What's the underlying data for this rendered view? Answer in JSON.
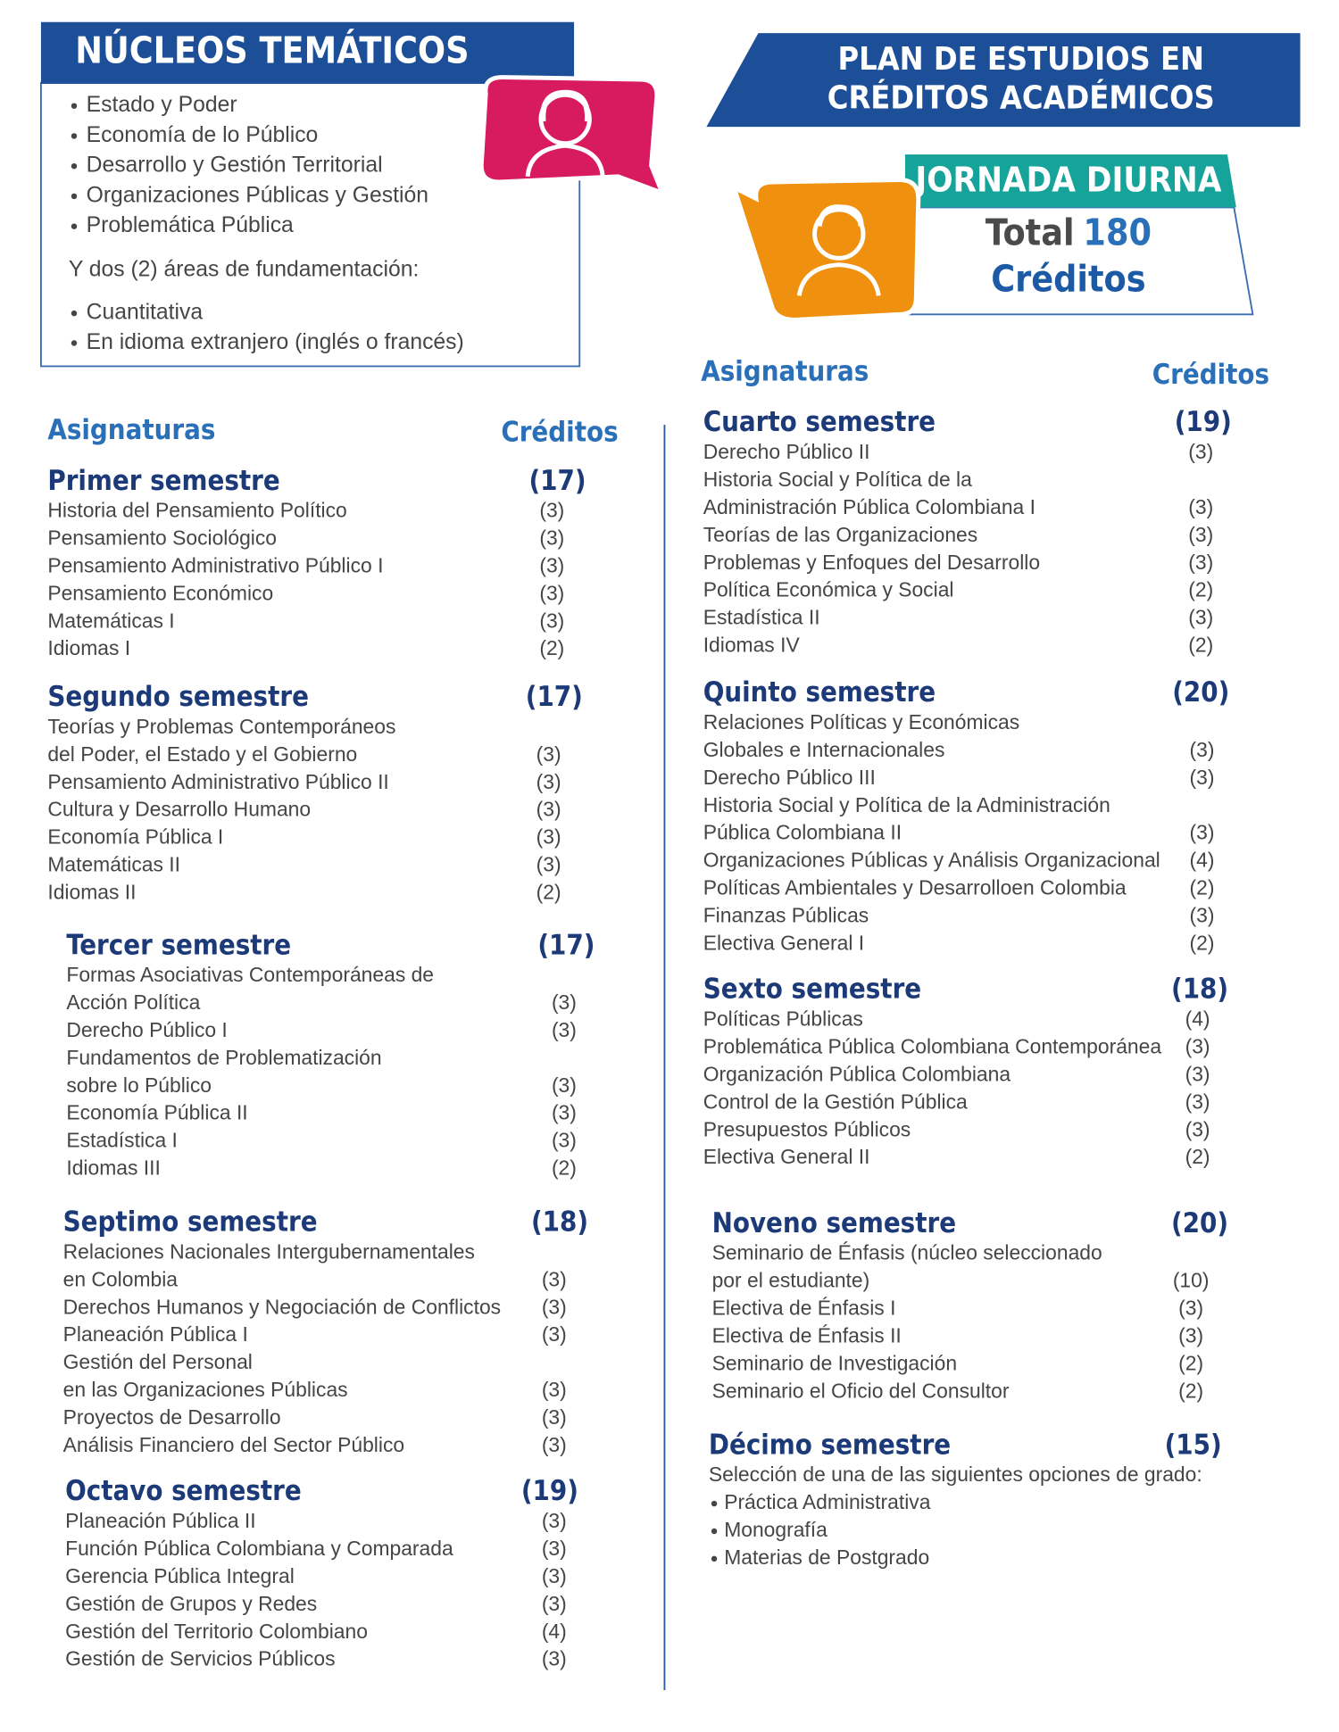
{
  "nucleos": {
    "title": "NÚCLEOS TEMÁTICOS",
    "items": [
      "Estado y Poder",
      "Economía de lo Público",
      "Desarrollo y Gestión Territorial",
      "Organizaciones Públicas y Gestión",
      "Problemática Pública"
    ],
    "note": "Y dos (2) áreas de fundamentación:",
    "areas": [
      "Cuantitativa",
      "En idioma extranjero (inglés o francés)"
    ]
  },
  "plan": {
    "title_lines": [
      "PLAN DE ESTUDIOS EN",
      "CRÉDITOS ACADÉMICOS"
    ],
    "jornada": "JORNADA DIURNA",
    "total_label": "Total",
    "total_value": "180",
    "total_unit": "Créditos"
  },
  "left_header": {
    "asignaturas": "Asignaturas",
    "creditos": "Créditos"
  },
  "right_header": {
    "asignaturas": "Asignaturas",
    "creditos": "Créditos"
  },
  "semesters": [
    {
      "title": "Primer semestre",
      "credits": "(17)",
      "items": [
        {
          "lines": [
            "Historia del Pensamiento Político"
          ],
          "credits": "(3)"
        },
        {
          "lines": [
            "Pensamiento Sociológico"
          ],
          "credits": "(3)"
        },
        {
          "lines": [
            "Pensamiento Administrativo Público I"
          ],
          "credits": "(3)"
        },
        {
          "lines": [
            "Pensamiento Económico"
          ],
          "credits": "(3)"
        },
        {
          "lines": [
            "Matemáticas I"
          ],
          "credits": "(3)"
        },
        {
          "lines": [
            "Idiomas I"
          ],
          "credits": "(2)"
        }
      ]
    },
    {
      "title": "Segundo semestre",
      "credits": "(17)",
      "items": [
        {
          "lines": [
            "Teorías y Problemas Contemporáneos",
            "del Poder, el Estado y el Gobierno"
          ],
          "credits": "(3)"
        },
        {
          "lines": [
            "Pensamiento Administrativo Público II"
          ],
          "credits": "(3)"
        },
        {
          "lines": [
            "Cultura y Desarrollo Humano"
          ],
          "credits": "(3)"
        },
        {
          "lines": [
            "Economía Pública I"
          ],
          "credits": "(3)"
        },
        {
          "lines": [
            "Matemáticas II"
          ],
          "credits": "(3)"
        },
        {
          "lines": [
            "Idiomas II"
          ],
          "credits": "(2)"
        }
      ]
    },
    {
      "title": "Tercer semestre",
      "credits": "(17)",
      "items": [
        {
          "lines": [
            "Formas Asociativas Contemporáneas de",
            "Acción Política"
          ],
          "credits": "(3)"
        },
        {
          "lines": [
            "Derecho Público I"
          ],
          "credits": "(3)"
        },
        {
          "lines": [
            "Fundamentos de Problematización",
            "sobre lo Público"
          ],
          "credits": "(3)"
        },
        {
          "lines": [
            "Economía Pública II"
          ],
          "credits": "(3)"
        },
        {
          "lines": [
            "Estadística I"
          ],
          "credits": "(3)"
        },
        {
          "lines": [
            "Idiomas III"
          ],
          "credits": "(2)"
        }
      ]
    },
    {
      "title": "Cuarto semestre",
      "credits": "(19)",
      "items": [
        {
          "lines": [
            "Derecho Público II"
          ],
          "credits": "(3)"
        },
        {
          "lines": [
            "Historia Social y Política de la",
            "Administración Pública Colombiana I"
          ],
          "credits": "(3)"
        },
        {
          "lines": [
            "Teorías de las Organizaciones"
          ],
          "credits": "(3)"
        },
        {
          "lines": [
            "Problemas y Enfoques del Desarrollo"
          ],
          "credits": "(3)"
        },
        {
          "lines": [
            "Política Económica y Social"
          ],
          "credits": "(2)"
        },
        {
          "lines": [
            "Estadística II"
          ],
          "credits": "(3)"
        },
        {
          "lines": [
            "Idiomas IV"
          ],
          "credits": "(2)"
        }
      ]
    },
    {
      "title": "Quinto semestre",
      "credits": "(20)",
      "items": [
        {
          "lines": [
            "Relaciones Políticas y Económicas",
            "Globales e Internacionales"
          ],
          "credits": "(3)"
        },
        {
          "lines": [
            "Derecho Público III"
          ],
          "credits": "(3)"
        },
        {
          "lines": [
            "Historia Social y Política de la Administración",
            "Pública Colombiana II"
          ],
          "credits": "(3)"
        },
        {
          "lines": [
            "Organizaciones Públicas y Análisis Organizacional"
          ],
          "credits": "(4)"
        },
        {
          "lines": [
            "Políticas Ambientales y Desarrolloen Colombia"
          ],
          "credits": "(2)"
        },
        {
          "lines": [
            "Finanzas Públicas"
          ],
          "credits": "(3)"
        },
        {
          "lines": [
            "Electiva General I"
          ],
          "credits": "(2)"
        }
      ]
    },
    {
      "title": "Sexto semestre",
      "credits": "(18)",
      "items": [
        {
          "lines": [
            "Políticas Públicas"
          ],
          "credits": "(4)"
        },
        {
          "lines": [
            "Problemática Pública Colombiana Contemporánea"
          ],
          "credits": "(3)"
        },
        {
          "lines": [
            "Organización Pública Colombiana"
          ],
          "credits": "(3)"
        },
        {
          "lines": [
            "Control de la Gestión Pública"
          ],
          "credits": "(3)"
        },
        {
          "lines": [
            "Presupuestos Públicos"
          ],
          "credits": "(3)"
        },
        {
          "lines": [
            "Electiva General II"
          ],
          "credits": "(2)"
        }
      ]
    },
    {
      "title": "Septimo semestre",
      "credits": "(18)",
      "items": [
        {
          "lines": [
            "Relaciones Nacionales Intergubernamentales",
            "en Colombia"
          ],
          "credits": "(3)"
        },
        {
          "lines": [
            "Derechos Humanos y Negociación de Conflictos"
          ],
          "credits": "(3)"
        },
        {
          "lines": [
            "Planeación Pública I"
          ],
          "credits": "(3)"
        },
        {
          "lines": [
            "Gestión del Personal",
            "en las Organizaciones Públicas"
          ],
          "credits": "(3)"
        },
        {
          "lines": [
            "Proyectos de Desarrollo"
          ],
          "credits": "(3)"
        },
        {
          "lines": [
            "Análisis Financiero del Sector Público"
          ],
          "credits": "(3)"
        }
      ]
    },
    {
      "title": "Octavo semestre",
      "credits": "(19)",
      "items": [
        {
          "lines": [
            "Planeación Pública II"
          ],
          "credits": "(3)"
        },
        {
          "lines": [
            "Función Pública Colombiana y Comparada"
          ],
          "credits": "(3)"
        },
        {
          "lines": [
            "Gerencia Pública Integral"
          ],
          "credits": "(3)"
        },
        {
          "lines": [
            "Gestión de Grupos y Redes"
          ],
          "credits": "(3)"
        },
        {
          "lines": [
            "Gestión del Territorio Colombiano"
          ],
          "credits": "(4)"
        },
        {
          "lines": [
            "Gestión de Servicios Públicos"
          ],
          "credits": "(3)"
        }
      ]
    },
    {
      "title": "Noveno semestre",
      "credits": "(20)",
      "items": [
        {
          "lines": [
            "Seminario de Énfasis (núcleo seleccionado",
            "por el estudiante)"
          ],
          "credits": "(10)"
        },
        {
          "lines": [
            "Electiva de Énfasis I"
          ],
          "credits": "(3)"
        },
        {
          "lines": [
            "Electiva de Énfasis II"
          ],
          "credits": "(3)"
        },
        {
          "lines": [
            "Seminario de Investigación"
          ],
          "credits": "(2)"
        },
        {
          "lines": [
            "Seminario el Oficio del Consultor"
          ],
          "credits": "(2)"
        }
      ]
    },
    {
      "title": "Décimo semestre",
      "credits": "(15)",
      "note": "Selección de una de las siguientes opciones de grado:",
      "options": [
        "Práctica Administrativa",
        "Monografía",
        "Materias de Postgrado"
      ]
    }
  ]
}
